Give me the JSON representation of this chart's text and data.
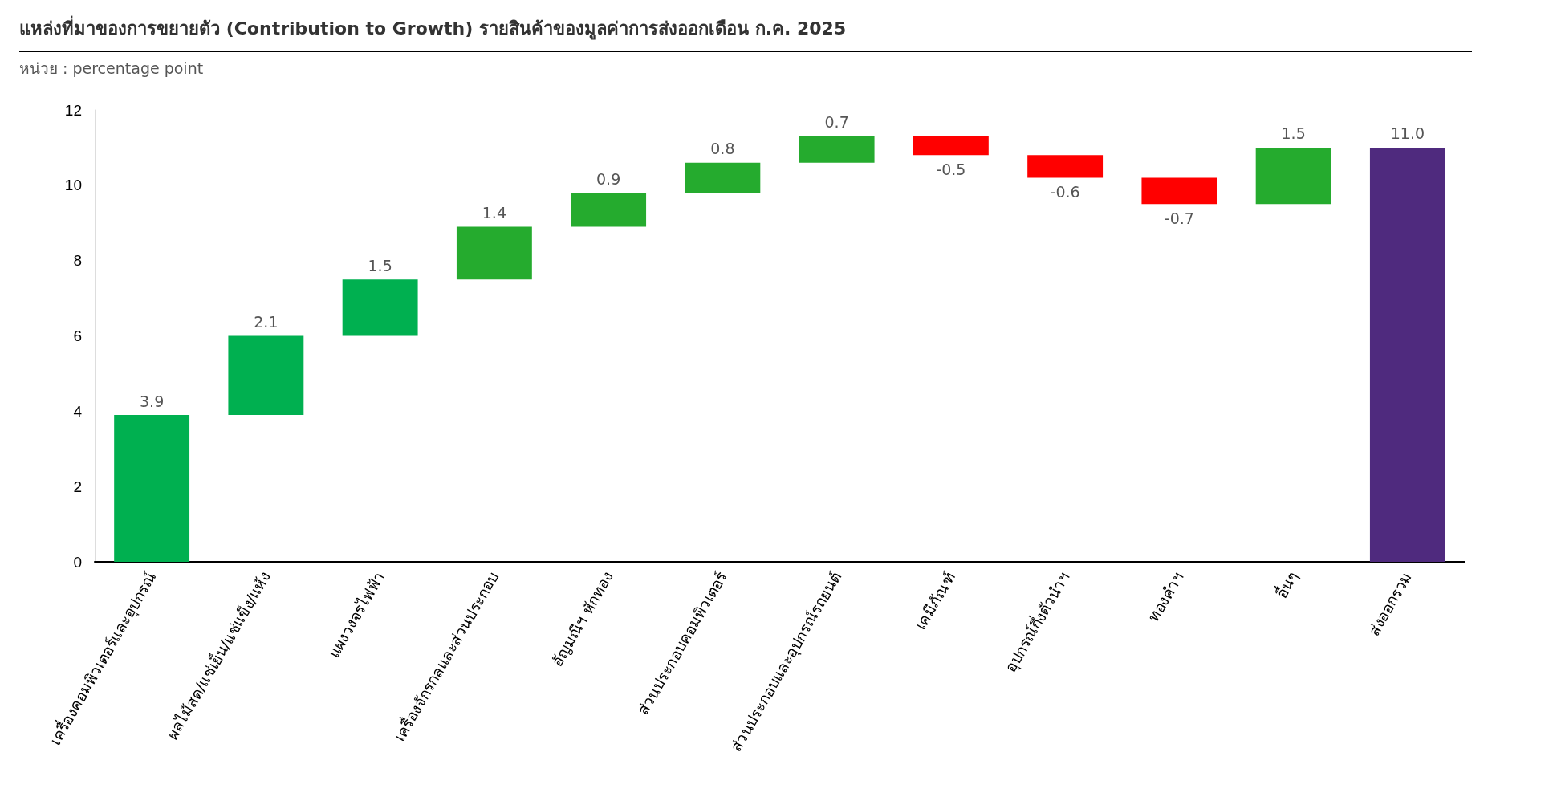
{
  "chart_data": {
    "type": "bar",
    "title": "แหล่งที่มาของการขยายตัว (Contribution to Growth) รายสินค้าของมูลค่าการส่งออกเดือน ก.ค. 2025",
    "subtitle": "หน่วย : percentage point",
    "categories": [
      "เครื่องคอมพิวเตอร์และอุปกรณ์",
      "ผลไม้สด/แช่เย็น/แช่แข็ง/แห้ง",
      "แผงวงจรไฟฟ้า",
      "เครื่องจักรกลและส่วนประกอบ",
      "อัญมณีฯ หักทอง",
      "ส่วนประกอบคอมพิวเตอร์",
      "ส่วนประกอบและอุปกรณ์รถยนต์",
      "เคมีภัณฑ์",
      "อุปกรณ์กึ่งตัวนำฯ",
      "ทองคำฯ",
      "อื่นๆ",
      "ส่งออกรวม"
    ],
    "values": [
      3.9,
      2.1,
      1.5,
      1.4,
      0.9,
      0.8,
      0.7,
      -0.5,
      -0.6,
      -0.7,
      1.5,
      11.0
    ],
    "base": [
      0,
      3.9,
      6.0,
      7.5,
      8.9,
      9.8,
      10.6,
      11.3,
      10.8,
      10.2,
      9.5,
      0
    ],
    "colors": [
      "#00b050",
      "#00b050",
      "#00b050",
      "#25ab2e",
      "#25ab2e",
      "#25ab2e",
      "#25ab2e",
      "#ff0000",
      "#ff0000",
      "#ff0000",
      "#25ab2e",
      "#4f2a7e"
    ],
    "value_labels": [
      "3.9",
      "2.1",
      "1.5",
      "1.4",
      "0.9",
      "0.8",
      "0.7",
      "-0.5",
      "-0.6",
      "-0.7",
      "1.5",
      "11.0"
    ],
    "ylim": [
      0,
      12
    ],
    "yticks": [
      0,
      2,
      4,
      6,
      8,
      10,
      12
    ],
    "grid": false
  }
}
